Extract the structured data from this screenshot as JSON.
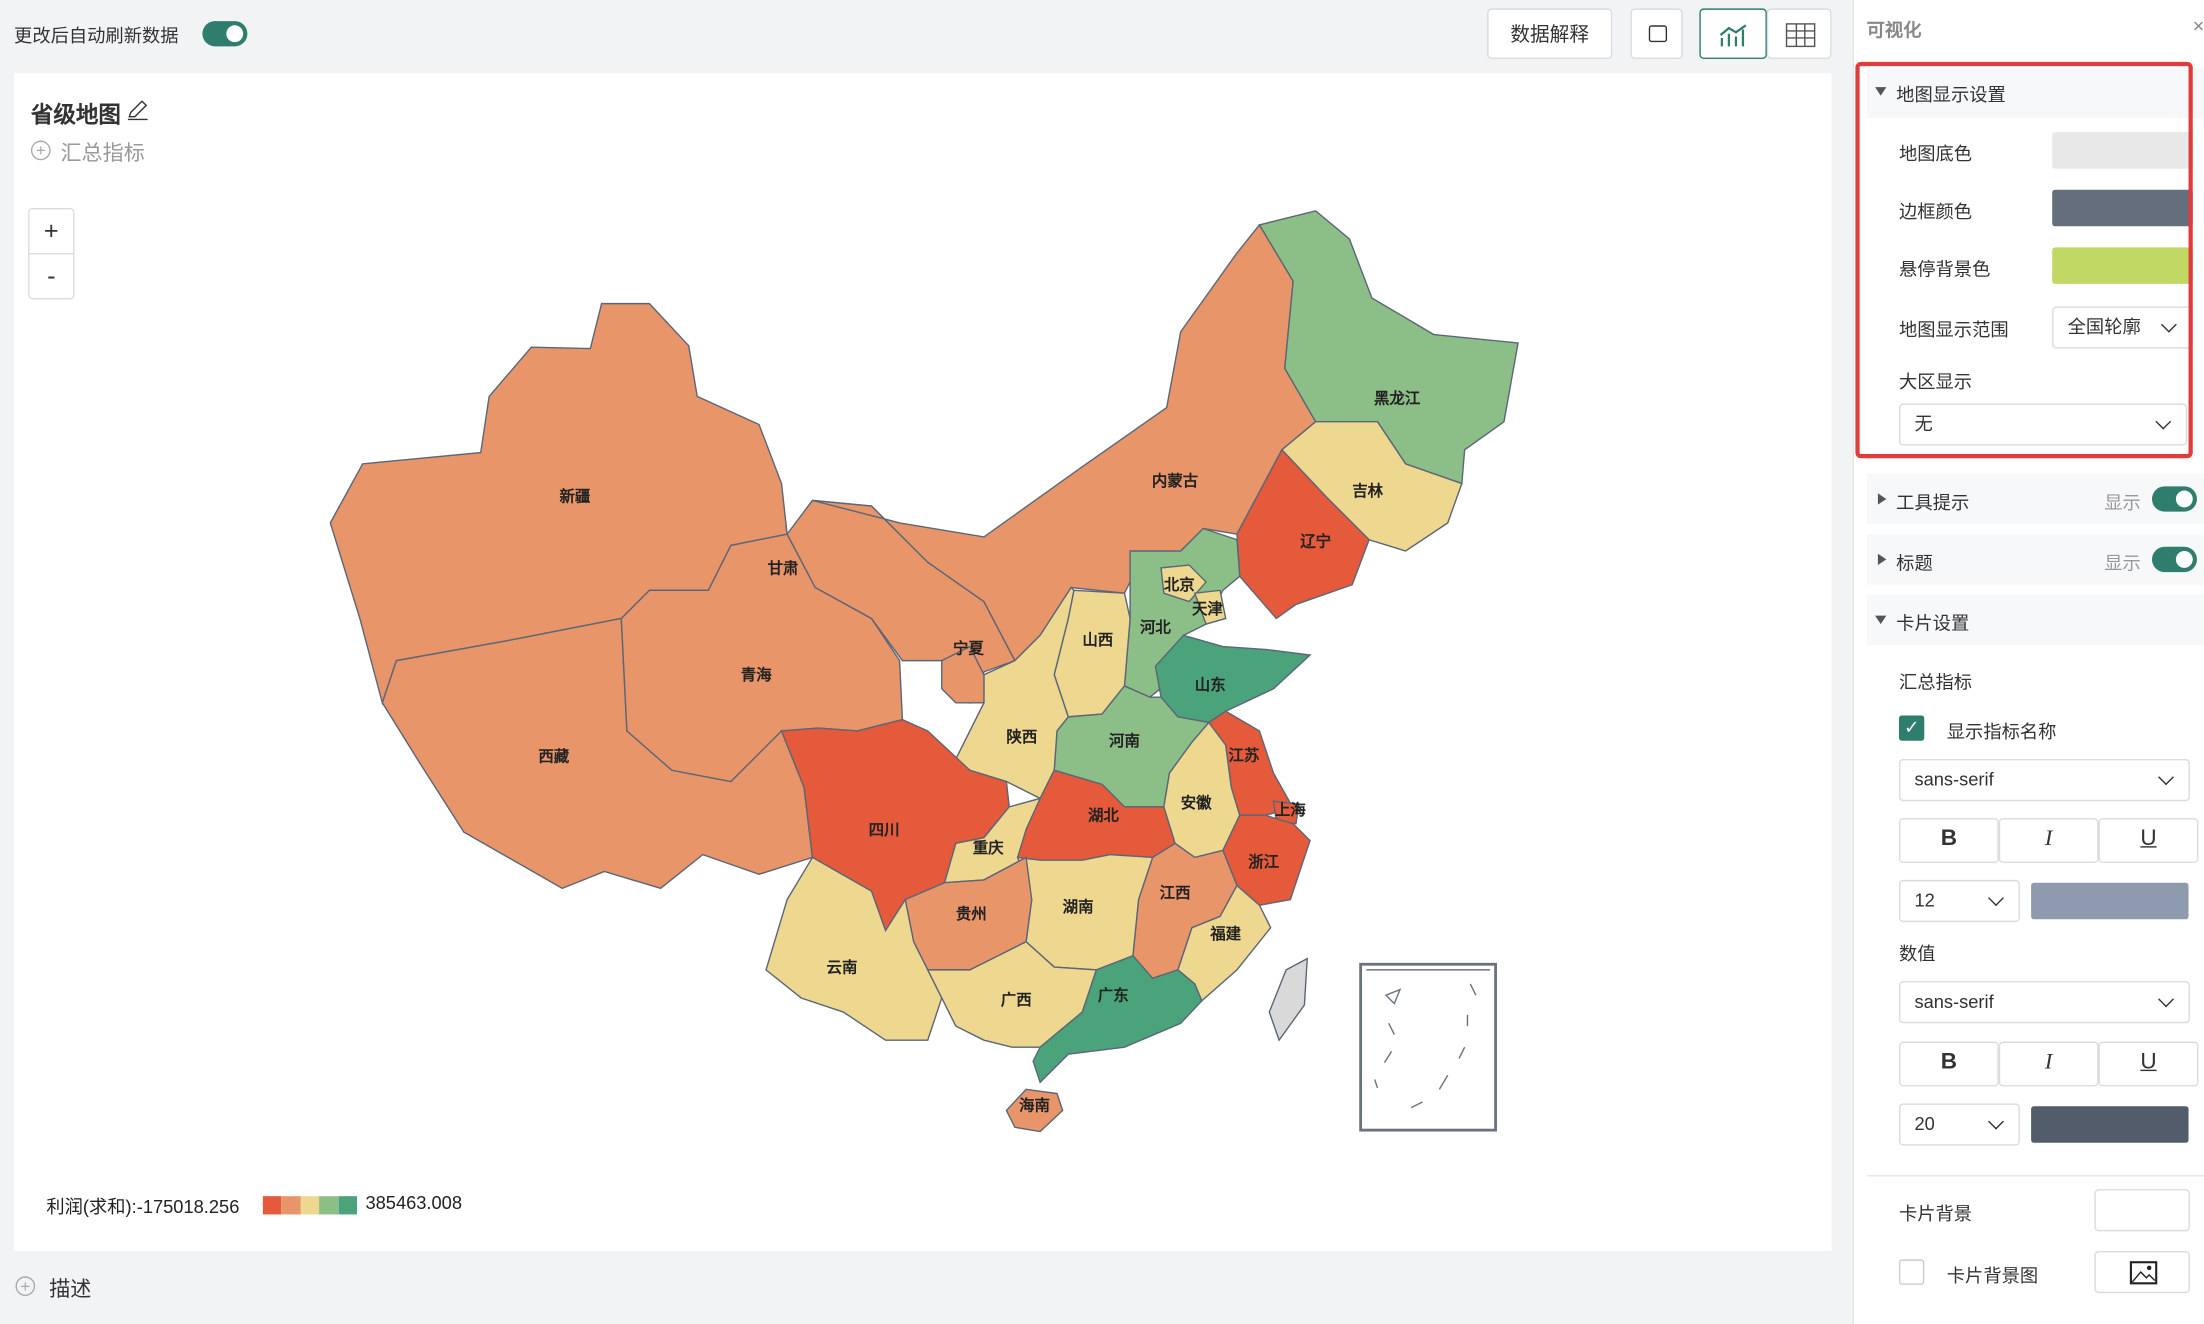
{
  "toolbar": {
    "auto_refresh": "更改后自动刷新数据",
    "explain_button": "数据解释"
  },
  "card": {
    "title": "省级地图",
    "add_metric": "汇总指标",
    "zoom_in": "+",
    "zoom_out": "-",
    "map": {
      "border_color": "#5b6677",
      "provinces": [
        {
          "name": "新疆",
          "color": "#e8956a"
        },
        {
          "name": "西藏",
          "color": "#e8956a"
        },
        {
          "name": "青海",
          "color": "#e8956a"
        },
        {
          "name": "甘肃",
          "color": "#e8956a"
        },
        {
          "name": "内蒙古",
          "color": "#e8956a"
        },
        {
          "name": "黑龙江",
          "color": "#8cbf88"
        },
        {
          "name": "吉林",
          "color": "#eed890"
        },
        {
          "name": "辽宁",
          "color": "#e45a3b"
        },
        {
          "name": "河北",
          "color": "#8cbf88"
        },
        {
          "name": "北京",
          "color": "#eed890"
        },
        {
          "name": "天津",
          "color": "#eed890"
        },
        {
          "name": "山西",
          "color": "#eed890"
        },
        {
          "name": "山东",
          "color": "#4aa37a"
        },
        {
          "name": "河南",
          "color": "#8cbf88"
        },
        {
          "name": "陕西",
          "color": "#eed890"
        },
        {
          "name": "宁夏",
          "color": "#e8956a"
        },
        {
          "name": "四川",
          "color": "#e45a3b"
        },
        {
          "name": "重庆",
          "color": "#eed890"
        },
        {
          "name": "湖北",
          "color": "#e45a3b"
        },
        {
          "name": "安徽",
          "color": "#eed890"
        },
        {
          "name": "江苏",
          "color": "#e45a3b"
        },
        {
          "name": "上海",
          "color": "#e45a3b"
        },
        {
          "name": "浙江",
          "color": "#e45a3b"
        },
        {
          "name": "江西",
          "color": "#e8956a"
        },
        {
          "name": "湖南",
          "color": "#eed890"
        },
        {
          "name": "贵州",
          "color": "#e8956a"
        },
        {
          "name": "云南",
          "color": "#eed890"
        },
        {
          "name": "广西",
          "color": "#eed890"
        },
        {
          "name": "福建",
          "color": "#eed890"
        },
        {
          "name": "广东",
          "color": "#4aa37a"
        },
        {
          "name": "海南",
          "color": "#e8956a"
        }
      ],
      "taiwan_color": "#d9d9d9"
    },
    "legend": {
      "label": "利润(求和):",
      "min": -175018.256,
      "max": 385463.008,
      "colors": [
        "#e45a3b",
        "#e8956a",
        "#eed890",
        "#8cbf88",
        "#4aa37a"
      ]
    }
  },
  "description": "描述",
  "panel": {
    "title": "可视化",
    "map_settings": {
      "title": "地图显示设置",
      "base_color_label": "地图底色",
      "base_color": "#e8e8e8",
      "border_color_label": "边框颜色",
      "border_color": "#646e7d",
      "hover_color_label": "悬停背景色",
      "hover_color": "#c1d964",
      "range_label": "地图显示范围",
      "range_value": "全国轮廓",
      "region_label": "大区显示",
      "region_value": "无"
    },
    "tooltip": {
      "title": "工具提示",
      "state": "显示"
    },
    "title_section": {
      "title": "标题",
      "state": "显示"
    },
    "card_settings": {
      "title": "卡片设置",
      "metric_label": "汇总指标",
      "show_name": "显示指标名称",
      "metric_font": "sans-serif",
      "metric_size": 12,
      "metric_color": "#8e9aae",
      "value_label": "数值",
      "value_font": "sans-serif",
      "value_size": 20,
      "value_color": "#525c6b",
      "background_label": "卡片背景",
      "background_image_label": "卡片背景图",
      "format_buttons": [
        "B",
        "I",
        "U"
      ]
    }
  }
}
